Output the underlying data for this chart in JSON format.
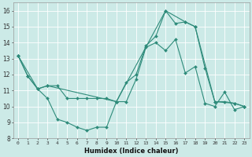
{
  "title": "",
  "xlabel": "Humidex (Indice chaleur)",
  "bg_color": "#cceae7",
  "grid_color": "#ffffff",
  "line_color": "#2e8b7a",
  "xlim": [
    -0.5,
    23.5
  ],
  "ylim": [
    8,
    16.5
  ],
  "xticks": [
    0,
    1,
    2,
    3,
    4,
    5,
    6,
    7,
    8,
    9,
    10,
    11,
    12,
    13,
    14,
    15,
    16,
    17,
    18,
    19,
    20,
    21,
    22,
    23
  ],
  "yticks": [
    8,
    9,
    10,
    11,
    12,
    13,
    14,
    15,
    16
  ],
  "series": [
    {
      "x": [
        0,
        1,
        2,
        3,
        4,
        5,
        6,
        7,
        8,
        9,
        10,
        11,
        12,
        13,
        14,
        15,
        16,
        17,
        18,
        19,
        20,
        21,
        22,
        23
      ],
      "y": [
        13.2,
        11.9,
        11.1,
        10.5,
        9.2,
        9.0,
        8.7,
        8.5,
        8.7,
        8.7,
        10.3,
        10.3,
        11.7,
        13.7,
        14.0,
        13.5,
        14.2,
        12.1,
        12.5,
        10.2,
        10.0,
        10.9,
        9.8,
        10.0
      ]
    },
    {
      "x": [
        0,
        1,
        2,
        3,
        4,
        5,
        6,
        7,
        8,
        9,
        10,
        11,
        12,
        13,
        14,
        15,
        16,
        17,
        18,
        19,
        20,
        21,
        22,
        23
      ],
      "y": [
        13.2,
        11.9,
        11.1,
        11.3,
        11.3,
        10.5,
        10.5,
        10.5,
        10.5,
        10.5,
        10.3,
        11.5,
        12.0,
        13.8,
        14.4,
        16.0,
        15.2,
        15.3,
        15.0,
        12.4,
        10.3,
        10.3,
        10.2,
        10.0
      ]
    },
    {
      "x": [
        0,
        2,
        3,
        10,
        15,
        17,
        18,
        20,
        22,
        23
      ],
      "y": [
        13.2,
        11.1,
        11.3,
        10.3,
        16.0,
        15.3,
        15.0,
        10.3,
        10.2,
        10.0
      ]
    }
  ]
}
